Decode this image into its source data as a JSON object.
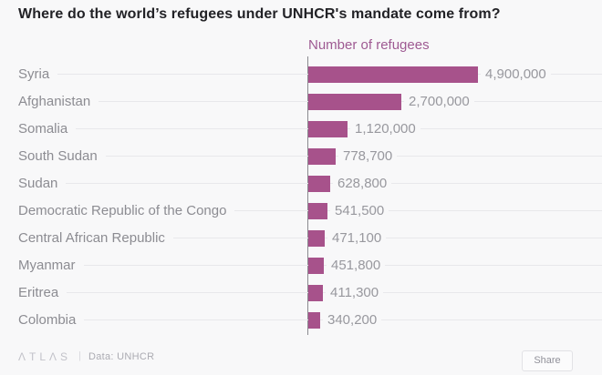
{
  "title": "Where do the world’s refugees under UNHCR's mandate come from?",
  "chart_data": {
    "type": "bar",
    "orientation": "horizontal",
    "title": "Where do the world’s refugees under UNHCR's mandate come from?",
    "axis_label": "Number of refugees",
    "categories": [
      "Syria",
      "Afghanistan",
      "Somalia",
      "South Sudan",
      "Sudan",
      "Democratic Republic of the Congo",
      "Central African Republic",
      "Myanmar",
      "Eritrea",
      "Colombia"
    ],
    "values": [
      4900000,
      2700000,
      1120000,
      778700,
      628800,
      541500,
      471100,
      451800,
      411300,
      340200
    ],
    "value_labels": [
      "4,900,000",
      "2,700,000",
      "1,120,000",
      "778,700",
      "628,800",
      "541,500",
      "471,100",
      "451,800",
      "411,300",
      "340,200"
    ],
    "xlim": [
      0,
      4900000
    ],
    "grid": true,
    "legend": "none",
    "bar_color": "#a7528b",
    "axis_label_color": "#9e5a92"
  },
  "footer": {
    "logo": "ΛTLΛS",
    "separator": "|",
    "source": "Data: UNHCR",
    "share_label": "Share"
  },
  "colors": {
    "background": "#f8f8f9",
    "title_text": "#222226",
    "category_text": "#8c8c92",
    "value_text": "#98989e",
    "gridline": "#e8e8eb",
    "axis_line": "#8a8a90"
  }
}
